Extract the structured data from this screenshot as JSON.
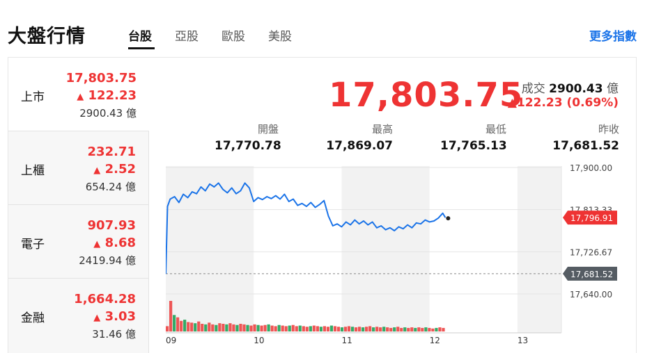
{
  "header": {
    "title": "大盤行情",
    "tabs": [
      {
        "label": "台股",
        "active": true
      },
      {
        "label": "亞股",
        "active": false
      },
      {
        "label": "歐股",
        "active": false
      },
      {
        "label": "美股",
        "active": false
      }
    ],
    "more_link": "更多指數"
  },
  "sidebar": {
    "items": [
      {
        "name": "上市",
        "price": "17,803.75",
        "change": "122.23",
        "volume": "2900.43 億",
        "active": true
      },
      {
        "name": "上櫃",
        "price": "232.71",
        "change": "2.52",
        "volume": "654.24 億",
        "active": false
      },
      {
        "name": "電子",
        "price": "907.93",
        "change": "8.68",
        "volume": "2419.94 億",
        "active": false
      },
      {
        "name": "金融",
        "price": "1,664.28",
        "change": "3.03",
        "volume": "31.46 億",
        "active": false
      }
    ]
  },
  "main": {
    "price": "17,803.75",
    "turnover_label": "成交",
    "turnover_value": "2900.43",
    "turnover_unit": "億",
    "change": "▲122.23 (0.69%)",
    "stats": [
      {
        "label": "開盤",
        "value": "17,770.78"
      },
      {
        "label": "最高",
        "value": "17,869.07"
      },
      {
        "label": "最低",
        "value": "17,765.13"
      },
      {
        "label": "昨收",
        "value": "17,681.52"
      }
    ]
  },
  "colors": {
    "up": "#ee3333",
    "line": "#1a73e8",
    "accent_link": "#1a73e8",
    "volume_up": "#ee5555",
    "volume_down": "#33aa66",
    "band": "#f2f2f2"
  },
  "chart_data": {
    "type": "line",
    "title": "",
    "xlabel": "",
    "ylabel": "",
    "x_ticks": [
      "09",
      "10",
      "11",
      "12",
      "13"
    ],
    "y_ticks": [
      "17,900.00",
      "17,813.33",
      "17,726.67",
      "17,640.00"
    ],
    "ylim": [
      17640,
      17900
    ],
    "current_label": "17,796.91",
    "prev_close": 17681.52,
    "prev_close_label": "17,681.52",
    "series": [
      {
        "values": [
          [
            9.0,
            17681
          ],
          [
            9.02,
            17820
          ],
          [
            9.05,
            17835
          ],
          [
            9.1,
            17840
          ],
          [
            9.15,
            17828
          ],
          [
            9.2,
            17845
          ],
          [
            9.25,
            17838
          ],
          [
            9.3,
            17850
          ],
          [
            9.35,
            17846
          ],
          [
            9.4,
            17860
          ],
          [
            9.45,
            17852
          ],
          [
            9.5,
            17866
          ],
          [
            9.55,
            17860
          ],
          [
            9.6,
            17868
          ],
          [
            9.65,
            17855
          ],
          [
            9.7,
            17848
          ],
          [
            9.75,
            17858
          ],
          [
            9.8,
            17846
          ],
          [
            9.85,
            17852
          ],
          [
            9.9,
            17868
          ],
          [
            9.95,
            17858
          ],
          [
            10.0,
            17830
          ],
          [
            10.05,
            17838
          ],
          [
            10.1,
            17834
          ],
          [
            10.15,
            17840
          ],
          [
            10.2,
            17836
          ],
          [
            10.25,
            17842
          ],
          [
            10.3,
            17835
          ],
          [
            10.35,
            17845
          ],
          [
            10.4,
            17830
          ],
          [
            10.45,
            17835
          ],
          [
            10.5,
            17822
          ],
          [
            10.55,
            17826
          ],
          [
            10.6,
            17820
          ],
          [
            10.65,
            17828
          ],
          [
            10.7,
            17818
          ],
          [
            10.75,
            17824
          ],
          [
            10.8,
            17832
          ],
          [
            10.85,
            17800
          ],
          [
            10.9,
            17780
          ],
          [
            10.95,
            17784
          ],
          [
            11.0,
            17778
          ],
          [
            11.05,
            17788
          ],
          [
            11.1,
            17782
          ],
          [
            11.15,
            17792
          ],
          [
            11.2,
            17784
          ],
          [
            11.25,
            17790
          ],
          [
            11.3,
            17782
          ],
          [
            11.35,
            17788
          ],
          [
            11.4,
            17776
          ],
          [
            11.45,
            17780
          ],
          [
            11.5,
            17772
          ],
          [
            11.55,
            17776
          ],
          [
            11.6,
            17770
          ],
          [
            11.65,
            17778
          ],
          [
            11.7,
            17774
          ],
          [
            11.75,
            17782
          ],
          [
            11.8,
            17776
          ],
          [
            11.85,
            17786
          ],
          [
            11.9,
            17784
          ],
          [
            11.95,
            17792
          ],
          [
            12.0,
            17788
          ],
          [
            12.05,
            17790
          ],
          [
            12.1,
            17796
          ],
          [
            12.15,
            17806
          ],
          [
            12.18,
            17797
          ]
        ]
      }
    ],
    "volume": [
      9,
      52,
      28,
      24,
      18,
      20,
      16,
      15,
      14,
      17,
      13,
      12,
      15,
      12,
      11,
      14,
      13,
      12,
      14,
      12,
      11,
      13,
      12,
      11,
      10,
      12,
      11,
      10,
      11,
      12,
      10,
      9,
      11,
      10,
      9,
      10,
      11,
      9,
      10,
      9,
      8,
      9,
      10,
      9,
      8,
      9,
      8,
      10,
      9,
      8,
      7,
      8,
      9,
      8,
      7,
      8,
      7,
      8,
      9,
      7,
      8,
      7,
      8,
      7,
      6,
      7,
      8,
      6,
      7,
      6,
      7,
      6,
      7,
      6,
      7,
      6,
      5,
      6,
      7,
      6
    ],
    "grid": true
  }
}
